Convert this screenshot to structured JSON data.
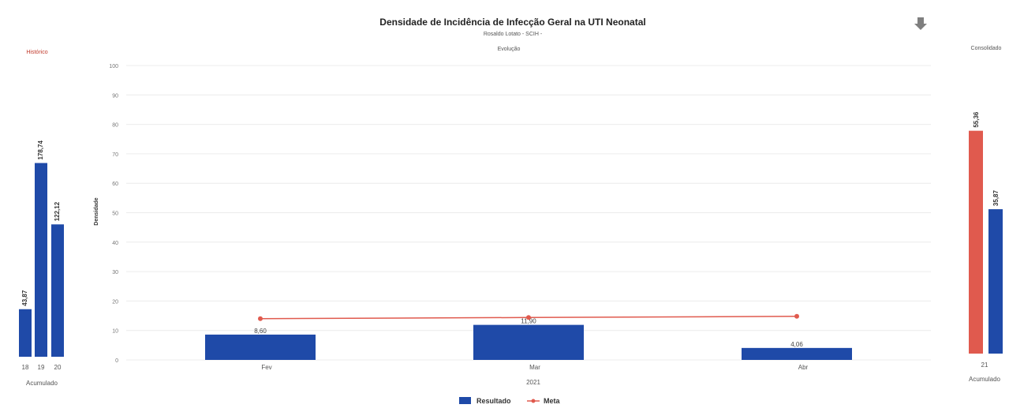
{
  "header": {
    "title": "Densidade de Incidência de Infecção Geral na UTI Neonatal",
    "subtitle": "Rosaldo Lotato - SCIH -",
    "subtitle2": "Evolução"
  },
  "colors": {
    "resultado": "#1f4aa8",
    "meta": "#e05a4e",
    "consolidado_red": "#e05a4e"
  },
  "download_icon": "download-arrow-icon",
  "chart_data": [
    {
      "type": "bar",
      "title": "Histórico",
      "categories": [
        "18",
        "19",
        "20"
      ],
      "values": [
        43.87,
        178.74,
        122.12
      ],
      "data_labels": [
        "43,87",
        "178,74",
        "122,12"
      ],
      "xlabel": "Acumulado"
    },
    {
      "type": "bar",
      "title": "Densidade de Incidência de Infecção Geral na UTI Neonatal",
      "subtitle": "Evolução",
      "ylabel": "Densidade",
      "ylim": [
        0,
        100
      ],
      "yticks": [
        0,
        10,
        20,
        30,
        40,
        50,
        60,
        70,
        80,
        90,
        100
      ],
      "categories": [
        "Fev",
        "Mar",
        "Abr"
      ],
      "year_label": "2021",
      "series": [
        {
          "name": "Resultado",
          "type": "bar",
          "values": [
            8.6,
            11.9,
            4.06
          ],
          "labels": [
            "8,60",
            "11,90",
            "4,06"
          ]
        },
        {
          "name": "Meta",
          "type": "line",
          "x": [
            0.5,
            1.5,
            2.5
          ],
          "values": [
            14.0,
            14.4,
            14.8
          ]
        }
      ],
      "legend": {
        "placement": "bottom-center",
        "items": [
          "Resultado",
          "Meta"
        ]
      },
      "grid": true
    },
    {
      "type": "bar",
      "title": "Consolidado",
      "categories": [
        "21"
      ],
      "series": [
        {
          "name": "Meta",
          "values": [
            55.36
          ],
          "labels": [
            "55,36"
          ]
        },
        {
          "name": "Resultado",
          "values": [
            35.87
          ],
          "labels": [
            "35,87"
          ]
        }
      ],
      "xlabel": "Acumulado"
    }
  ]
}
